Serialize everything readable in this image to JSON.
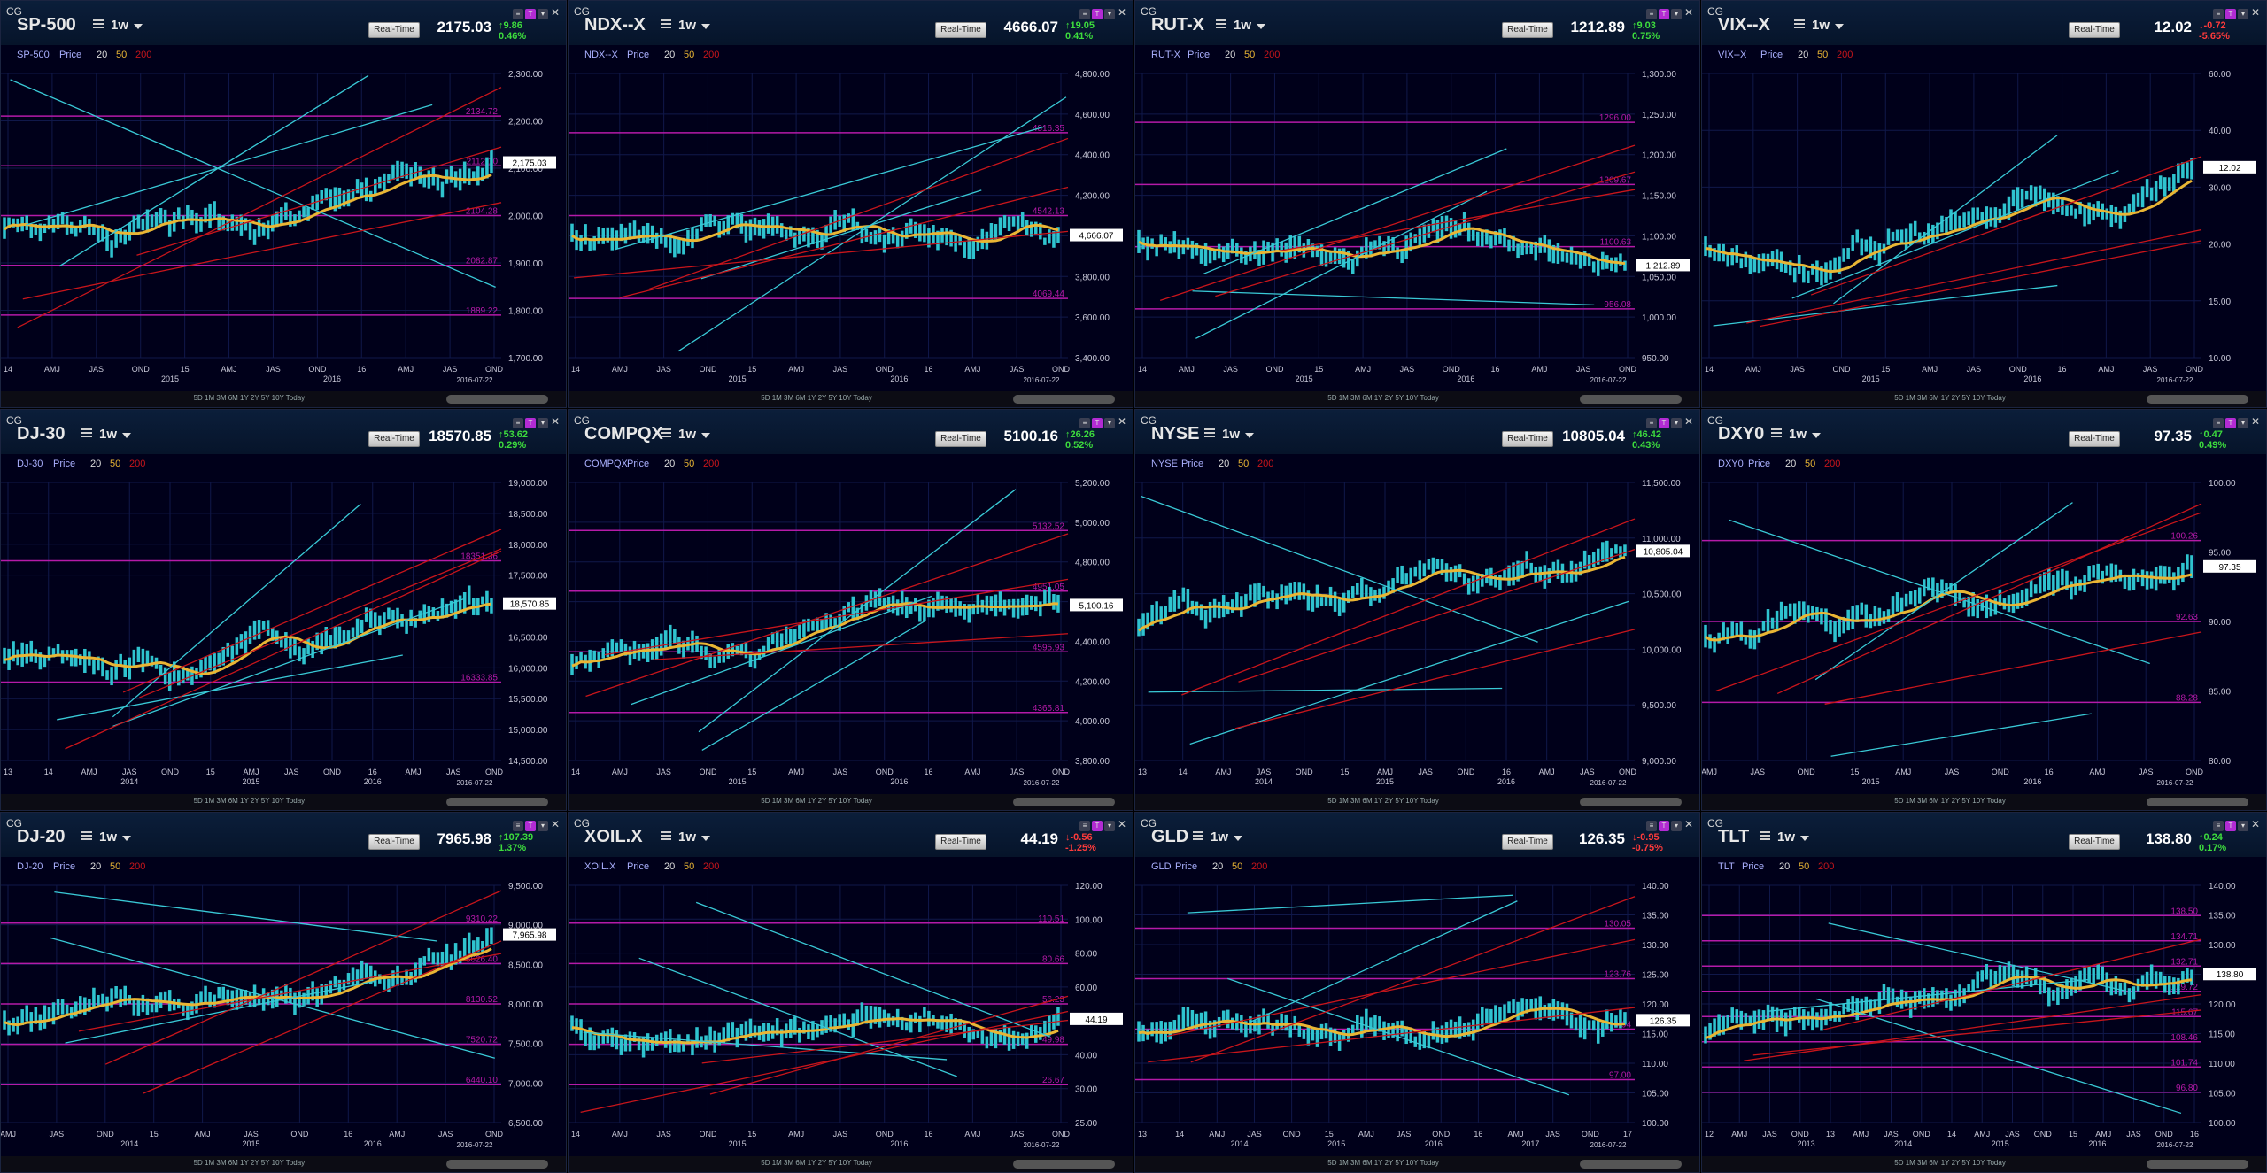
{
  "app": {
    "label": "CG",
    "realtime_label": "Real-Time",
    "price_suffix": "Price"
  },
  "colors": {
    "cyan": "#39c9d6",
    "yellow": "#e9b534",
    "red": "#c8151b",
    "magenta": "#b51aa8",
    "bar": "#2fc3cf",
    "bg": "#00001a"
  },
  "footer_buttons": "5D 1M 3M 6M 1Y 2Y 5Y 10Y Today",
  "panels": [
    {
      "symbol": "SP-500",
      "freq": "1w",
      "price": "2175.03",
      "change": "9.86",
      "change_pct": "0.46%",
      "dir": "up",
      "legend_ma": [
        "20",
        "50",
        "200"
      ],
      "yticks": [
        "2,300.00",
        "2,200.00",
        "2,100.00",
        "2,000.00",
        "1,900.00",
        "1,800.00",
        "1,700.00"
      ],
      "xticks": [
        "14",
        "AMJ",
        "JAS",
        "OND",
        "15",
        "AMJ",
        "JAS",
        "OND",
        "16",
        "AMJ",
        "JAS",
        "OND"
      ],
      "year_labels": [
        "2015",
        "2016"
      ],
      "date_label": "2016-07-22",
      "levels": [
        "2134.72",
        "2112.10",
        "2104.28",
        "2082.87",
        "1889.22"
      ],
      "last_tag": "2,175.03"
    },
    {
      "symbol": "NDX--X",
      "freq": "1w",
      "price": "4666.07",
      "change": "19.05",
      "change_pct": "0.41%",
      "dir": "up",
      "legend_ma": [
        "20",
        "50",
        "200"
      ],
      "yticks": [
        "4,800.00",
        "4,600.00",
        "4,400.00",
        "4,200.00",
        "4,000.00",
        "3,800.00",
        "3,600.00",
        "3,400.00"
      ],
      "xticks": [
        "14",
        "AMJ",
        "JAS",
        "OND",
        "15",
        "AMJ",
        "JAS",
        "OND",
        "16",
        "AMJ",
        "JAS",
        "OND"
      ],
      "year_labels": [
        "2015",
        "2016"
      ],
      "date_label": "2016-07-22",
      "levels": [
        "4816.35",
        "4542.13",
        "4069.44"
      ],
      "last_tag": "4,666.07"
    },
    {
      "symbol": "RUT-X",
      "freq": "1w",
      "price": "1212.89",
      "change": "9.03",
      "change_pct": "0.75%",
      "dir": "up",
      "legend_ma": [
        "20",
        "50",
        "200"
      ],
      "yticks": [
        "1,300.00",
        "1,250.00",
        "1,200.00",
        "1,150.00",
        "1,100.00",
        "1,050.00",
        "1,000.00",
        "950.00"
      ],
      "xticks": [
        "14",
        "AMJ",
        "JAS",
        "OND",
        "15",
        "AMJ",
        "JAS",
        "OND",
        "16",
        "AMJ",
        "JAS",
        "OND"
      ],
      "year_labels": [
        "2015",
        "2016"
      ],
      "date_label": "2016-07-22",
      "levels": [
        "1296.00",
        "1209.67",
        "1100.63",
        "956.08"
      ],
      "last_tag": "1,212.89"
    },
    {
      "symbol": "VIX--X",
      "freq": "1w",
      "price": "12.02",
      "change": "-0.72",
      "change_pct": "-5.65%",
      "dir": "dn",
      "legend_ma": [
        "20",
        "50",
        "200"
      ],
      "yticks": [
        "60.00",
        "40.00",
        "30.00",
        "20.00",
        "15.00",
        "10.00"
      ],
      "xticks": [
        "14",
        "AMJ",
        "JAS",
        "OND",
        "15",
        "AMJ",
        "JAS",
        "OND",
        "16",
        "AMJ",
        "JAS",
        "OND"
      ],
      "year_labels": [
        "2015",
        "2016"
      ],
      "date_label": "2016-07-22",
      "levels": [],
      "last_tag": "12.02"
    },
    {
      "symbol": "DJ-30",
      "freq": "1w",
      "price": "18570.85",
      "change": "53.62",
      "change_pct": "0.29%",
      "dir": "up",
      "legend_ma": [
        "20",
        "50",
        "200"
      ],
      "yticks": [
        "19,000.00",
        "18,500.00",
        "18,000.00",
        "17,500.00",
        "17,000.00",
        "16,500.00",
        "16,000.00",
        "15,500.00",
        "15,000.00",
        "14,500.00"
      ],
      "xticks": [
        "13",
        "14",
        "AMJ",
        "JAS",
        "OND",
        "15",
        "AMJ",
        "JAS",
        "OND",
        "16",
        "AMJ",
        "JAS",
        "OND"
      ],
      "year_labels": [
        "2014",
        "2015",
        "2016"
      ],
      "date_label": "2016-07-22",
      "levels": [
        "18351.36",
        "16333.85"
      ],
      "last_tag": "18,570.85"
    },
    {
      "symbol": "COMPQX",
      "freq": "1w",
      "price": "5100.16",
      "change": "26.26",
      "change_pct": "0.52%",
      "dir": "up",
      "legend_ma": [
        "20",
        "50",
        "200"
      ],
      "yticks": [
        "5,200.00",
        "5,000.00",
        "4,800.00",
        "4,600.00",
        "4,400.00",
        "4,200.00",
        "4,000.00",
        "3,800.00"
      ],
      "xticks": [
        "14",
        "AMJ",
        "JAS",
        "OND",
        "15",
        "AMJ",
        "JAS",
        "OND",
        "16",
        "AMJ",
        "JAS",
        "OND"
      ],
      "year_labels": [
        "2015",
        "2016"
      ],
      "date_label": "2016-07-22",
      "levels": [
        "5132.52",
        "4951.05",
        "4595.93",
        "4365.81"
      ],
      "last_tag": "5,100.16"
    },
    {
      "symbol": "NYSE",
      "freq": "1w",
      "price": "10805.04",
      "change": "46.42",
      "change_pct": "0.43%",
      "dir": "up",
      "legend_ma": [
        "20",
        "50",
        "200"
      ],
      "yticks": [
        "11,500.00",
        "11,000.00",
        "10,500.00",
        "10,000.00",
        "9,500.00",
        "9,000.00"
      ],
      "xticks": [
        "13",
        "14",
        "AMJ",
        "JAS",
        "OND",
        "15",
        "AMJ",
        "JAS",
        "OND",
        "16",
        "AMJ",
        "JAS",
        "OND"
      ],
      "year_labels": [
        "2014",
        "2015",
        "2016"
      ],
      "date_label": "2016-07-22",
      "levels": [],
      "last_tag": "10,805.04"
    },
    {
      "symbol": "DXY0",
      "freq": "1w",
      "price": "97.35",
      "change": "0.47",
      "change_pct": "0.49%",
      "dir": "up",
      "legend_ma": [
        "20",
        "50",
        "200"
      ],
      "yticks": [
        "100.00",
        "95.00",
        "90.00",
        "85.00",
        "80.00"
      ],
      "xticks": [
        "AMJ",
        "JAS",
        "OND",
        "15",
        "AMJ",
        "JAS",
        "OND",
        "16",
        "AMJ",
        "JAS",
        "OND"
      ],
      "year_labels": [
        "2015",
        "2016"
      ],
      "date_label": "2016-07-22",
      "levels": [
        "100.26",
        "92.63",
        "88.28"
      ],
      "last_tag": "97.35"
    },
    {
      "symbol": "DJ-20",
      "freq": "1w",
      "price": "7965.98",
      "change": "107.39",
      "change_pct": "1.37%",
      "dir": "up",
      "legend_ma": [
        "20",
        "50",
        "200"
      ],
      "yticks": [
        "9,500.00",
        "9,000.00",
        "8,500.00",
        "8,000.00",
        "7,500.00",
        "7,000.00",
        "6,500.00"
      ],
      "xticks": [
        "AMJ",
        "JAS",
        "OND",
        "15",
        "AMJ",
        "JAS",
        "OND",
        "16",
        "AMJ",
        "JAS",
        "OND"
      ],
      "year_labels": [
        "2014",
        "2015",
        "2016"
      ],
      "date_label": "2016-07-22",
      "levels": [
        "9310.22",
        "8626.40",
        "8130.52",
        "7520.72",
        "6440.10"
      ],
      "last_tag": "7,965.98"
    },
    {
      "symbol": "XOIL.X",
      "freq": "1w",
      "price": "44.19",
      "change": "-0.56",
      "change_pct": "-1.25%",
      "dir": "dn",
      "legend_ma": [
        "20",
        "50",
        "200"
      ],
      "yticks": [
        "120.00",
        "100.00",
        "80.00",
        "60.00",
        "50.00",
        "40.00",
        "30.00",
        "25.00"
      ],
      "xticks": [
        "14",
        "AMJ",
        "JAS",
        "OND",
        "15",
        "AMJ",
        "JAS",
        "OND",
        "16",
        "AMJ",
        "JAS",
        "OND"
      ],
      "year_labels": [
        "2015",
        "2016"
      ],
      "date_label": "2016-07-22",
      "levels": [
        "110.51",
        "80.66",
        "56.23",
        "49.98",
        "26.67"
      ],
      "last_tag": "44.19"
    },
    {
      "symbol": "GLD",
      "freq": "1w",
      "price": "126.35",
      "change": "-0.95",
      "change_pct": "-0.75%",
      "dir": "dn",
      "legend_ma": [
        "20",
        "50",
        "200"
      ],
      "yticks": [
        "140.00",
        "135.00",
        "130.00",
        "125.00",
        "120.00",
        "115.00",
        "110.00",
        "105.00",
        "100.00"
      ],
      "xticks": [
        "13",
        "14",
        "AMJ",
        "JAS",
        "OND",
        "15",
        "AMJ",
        "JAS",
        "OND",
        "16",
        "AMJ",
        "JAS",
        "OND",
        "17"
      ],
      "year_labels": [
        "2014",
        "2015",
        "2016",
        "2017"
      ],
      "date_label": "2016-07-22",
      "levels": [
        "130.05",
        "123.76",
        "114.94",
        "97.00"
      ],
      "last_tag": "126.35"
    },
    {
      "symbol": "TLT",
      "freq": "1w",
      "price": "138.80",
      "change": "0.24",
      "change_pct": "0.17%",
      "dir": "up",
      "legend_ma": [
        "20",
        "50",
        "200"
      ],
      "yticks": [
        "140.00",
        "135.00",
        "130.00",
        "125.00",
        "120.00",
        "115.00",
        "110.00",
        "105.00",
        "100.00"
      ],
      "xticks": [
        "12",
        "AMJ",
        "JAS",
        "OND",
        "13",
        "AMJ",
        "JAS",
        "OND",
        "14",
        "AMJ",
        "JAS",
        "OND",
        "15",
        "AMJ",
        "JAS",
        "OND",
        "16"
      ],
      "year_labels": [
        "2013",
        "2014",
        "2015",
        "2016"
      ],
      "date_label": "2016-07-22",
      "levels": [
        "138.50",
        "134.71",
        "132.71",
        "129.72",
        "115.67",
        "108.46",
        "101.74",
        "96.80"
      ],
      "last_tag": "138.80"
    }
  ]
}
